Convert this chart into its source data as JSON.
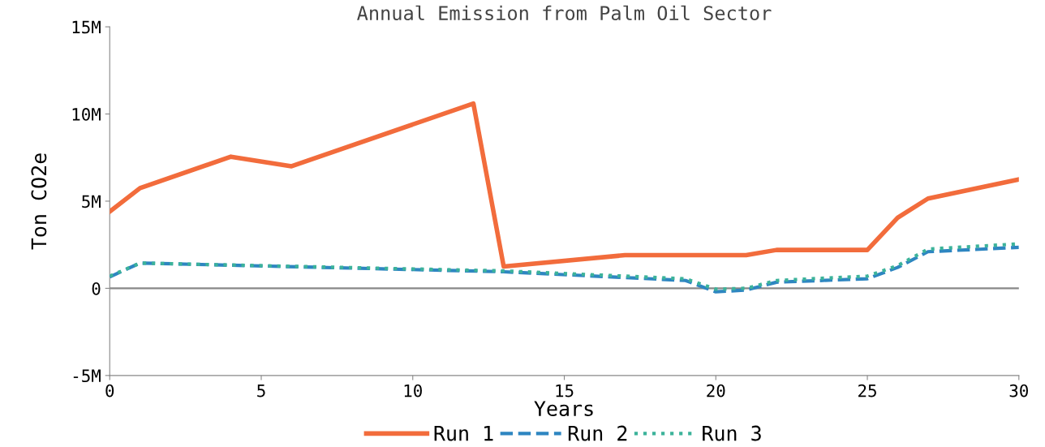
{
  "chart_data": {
    "type": "line",
    "title": "Annual Emission from Palm Oil Sector",
    "xlabel": "Years",
    "ylabel": "Ton CO2e",
    "xlim": [
      0,
      30
    ],
    "xticks": [
      0,
      5,
      10,
      15,
      20,
      25,
      30
    ],
    "ylim": [
      -5000000,
      15000000
    ],
    "yticks": [
      {
        "value": -5000000,
        "label": "-5M"
      },
      {
        "value": 0,
        "label": "0"
      },
      {
        "value": 5000000,
        "label": "5M"
      },
      {
        "value": 10000000,
        "label": "10M"
      },
      {
        "value": 15000000,
        "label": "15M"
      }
    ],
    "grid": false,
    "legend": "bottom",
    "ref_lines": [
      {
        "axis": "y",
        "value": 0,
        "color": "#888888"
      }
    ],
    "series": [
      {
        "name": "Run 1",
        "color": "#f26c3c",
        "line_style": "solid",
        "x": [
          0,
          1,
          4,
          6,
          12,
          13,
          17,
          21,
          22,
          25,
          26,
          27,
          30
        ],
        "values": [
          4400000,
          5750000,
          7550000,
          7000000,
          10600000,
          1250000,
          1900000,
          1900000,
          2200000,
          2200000,
          4050000,
          5150000,
          6250000
        ]
      },
      {
        "name": "Run 2",
        "color": "#2e86c1",
        "line_style": "dashed",
        "x": [
          0,
          1,
          13,
          19,
          20,
          21,
          22,
          25,
          26,
          27,
          30
        ],
        "values": [
          650000,
          1450000,
          950000,
          450000,
          -200000,
          -100000,
          350000,
          550000,
          1200000,
          2100000,
          2350000
        ]
      },
      {
        "name": "Run 3",
        "color": "#3cb39a",
        "line_style": "dotted",
        "x": [
          0,
          1,
          13,
          19,
          20,
          21,
          22,
          25,
          26,
          27,
          30
        ],
        "values": [
          700000,
          1450000,
          1000000,
          550000,
          -50000,
          0,
          450000,
          700000,
          1300000,
          2250000,
          2550000
        ]
      }
    ]
  }
}
